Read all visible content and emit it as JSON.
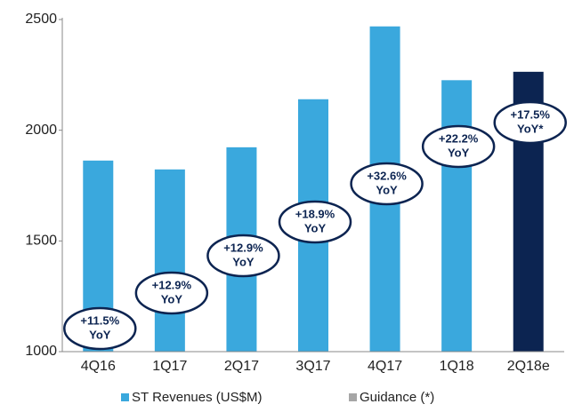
{
  "chart_data": {
    "type": "bar",
    "categories": [
      "4Q16",
      "1Q17",
      "2Q17",
      "3Q17",
      "4Q17",
      "1Q18",
      "2Q18e"
    ],
    "series": [
      {
        "name": "ST Revenues (US$M)",
        "color": "#3aa8dd",
        "values": [
          1863,
          1823,
          1923,
          2140,
          2469,
          2226,
          null
        ]
      },
      {
        "name": "Guidance (*)",
        "color": "#a6a6a6",
        "bar_color": "#0c2451",
        "values": [
          null,
          null,
          null,
          null,
          null,
          null,
          2264
        ]
      }
    ],
    "ylim": [
      1000,
      2500
    ],
    "yticks": [
      1000,
      1500,
      2000,
      2500
    ],
    "annotations": [
      [
        "+11.5%",
        "YoY"
      ],
      [
        "+12.9%",
        "YoY"
      ],
      [
        "+12.9%",
        "YoY"
      ],
      [
        "+18.9%",
        "YoY"
      ],
      [
        "+32.6%",
        "YoY"
      ],
      [
        "+22.2%",
        "YoY"
      ],
      [
        "+17.5%",
        "YoY*"
      ]
    ],
    "grid": false
  }
}
